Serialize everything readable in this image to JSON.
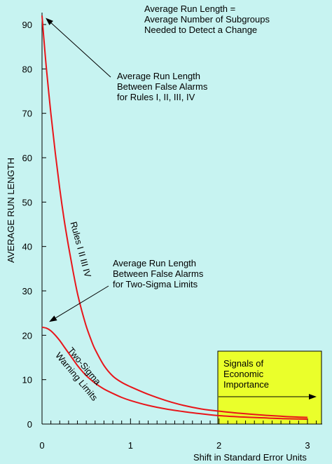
{
  "chart_data": {
    "type": "line",
    "title_lines": [
      "Average Run Length =",
      "Average Number of Subgroups",
      "Needed to Detect a Change"
    ],
    "xlabel": "Shift in Standard Error Units",
    "ylabel": "AVERAGE  RUN  LENGTH",
    "xlim": [
      0,
      3.1
    ],
    "ylim": [
      0,
      93
    ],
    "x_ticks": [
      0,
      1,
      2,
      3
    ],
    "x_minor_step": 0.1,
    "y_ticks": [
      0,
      10,
      20,
      30,
      40,
      50,
      60,
      70,
      80,
      90
    ],
    "grid": false,
    "series": [
      {
        "name": "Rules I II III IV",
        "color": "#e8151a",
        "x": [
          0,
          0.02,
          0.05,
          0.1,
          0.15,
          0.2,
          0.25,
          0.3,
          0.35,
          0.4,
          0.45,
          0.5,
          0.55,
          0.6,
          0.7,
          0.8,
          0.9,
          1.0,
          1.2,
          1.4,
          1.6,
          1.8,
          2.0,
          2.25,
          2.5,
          2.75,
          3.0
        ],
        "y": [
          92,
          87,
          80,
          70,
          61,
          53,
          46,
          40,
          34.5,
          29.5,
          25.5,
          22,
          19.2,
          16.8,
          13.2,
          10.8,
          9.4,
          8.4,
          6.7,
          5.3,
          4.2,
          3.4,
          2.9,
          2.4,
          2.0,
          1.7,
          1.5
        ]
      },
      {
        "name": "Two-Sigma Warning Limits",
        "color": "#e8151a",
        "x": [
          0,
          0.05,
          0.1,
          0.15,
          0.2,
          0.25,
          0.3,
          0.35,
          0.4,
          0.45,
          0.5,
          0.6,
          0.7,
          0.8,
          0.9,
          1.0,
          1.2,
          1.4,
          1.6,
          1.8,
          2.0,
          2.25,
          2.5,
          2.75,
          3.0
        ],
        "y": [
          21.8,
          21.6,
          21.0,
          20.0,
          18.8,
          17.4,
          16.0,
          14.6,
          13.2,
          12.0,
          10.9,
          9.2,
          7.9,
          6.9,
          6.0,
          5.3,
          4.2,
          3.4,
          2.8,
          2.3,
          1.9,
          1.6,
          1.4,
          1.2,
          1.1
        ]
      }
    ],
    "annotations": [
      {
        "id": "arl-rules",
        "lines": [
          "Average Run Length",
          "Between False Alarms",
          "for Rules I, II, III, IV"
        ],
        "arrow_to": [
          0.04,
          91.5
        ]
      },
      {
        "id": "arl-two-sigma",
        "lines": [
          "Average Run Length",
          "Between False Alarms",
          "for Two-Sigma Limits"
        ],
        "arrow_to": [
          0.08,
          23.0
        ]
      }
    ],
    "curve_labels": {
      "rules": "Rules I II III IV",
      "two_sigma": [
        "Two-Sigma",
        "Warning Limits"
      ]
    },
    "economic_box": {
      "lines": [
        "Signals of",
        "Economic",
        "Importance"
      ],
      "fill": "#eaff2b",
      "x_start": 2.0
    }
  }
}
